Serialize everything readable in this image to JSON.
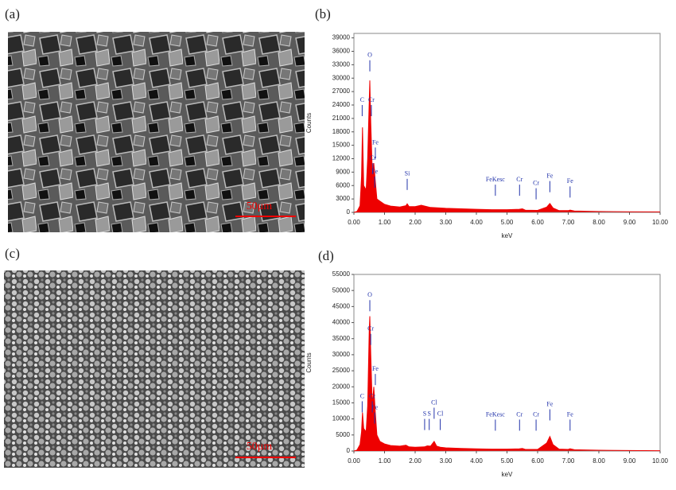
{
  "panel_labels": [
    "(a)",
    "(b)",
    "(c)",
    "(d)"
  ],
  "scale_bars": [
    "50μm",
    "50μm"
  ],
  "chart_data": [
    {
      "type": "area",
      "color": "#ee0000",
      "xlabel": "keV",
      "ylabel": "Counts",
      "x": [
        0,
        0.1,
        0.2,
        0.25,
        0.28,
        0.32,
        0.4,
        0.45,
        0.5,
        0.52,
        0.55,
        0.6,
        0.65,
        0.7,
        0.75,
        0.85,
        1.0,
        1.2,
        1.5,
        1.7,
        1.74,
        1.8,
        2.0,
        2.2,
        2.5,
        3.0,
        3.5,
        4.0,
        4.5,
        5.0,
        5.4,
        5.5,
        5.6,
        6.0,
        6.3,
        6.4,
        6.5,
        6.7,
        7.0,
        7.06,
        7.2,
        8.0,
        9.0,
        10.0
      ],
      "values": [
        0,
        200,
        1500,
        8000,
        19000,
        6000,
        5000,
        12000,
        25000,
        29500,
        20000,
        9000,
        11000,
        7000,
        3000,
        2500,
        1800,
        1400,
        1200,
        1500,
        1900,
        1300,
        1300,
        1600,
        1100,
        900,
        800,
        700,
        600,
        600,
        700,
        800,
        500,
        450,
        1200,
        2000,
        1000,
        400,
        400,
        500,
        300,
        200,
        150,
        100
      ],
      "annotations": [
        {
          "text": "C",
          "x": 0.27,
          "y": 24000
        },
        {
          "text": "O",
          "x": 0.52,
          "y": 34000
        },
        {
          "text": "Cr",
          "x": 0.57,
          "y": 24000
        },
        {
          "text": "Fe",
          "x": 0.7,
          "y": 14500
        },
        {
          "text": "Cr",
          "x": 0.62,
          "y": 11000
        },
        {
          "text": "Fe",
          "x": 0.68,
          "y": 8000
        },
        {
          "text": "Si",
          "x": 1.74,
          "y": 7500
        },
        {
          "text": "FeKesc",
          "x": 4.62,
          "y": 6200
        },
        {
          "text": "Cr",
          "x": 5.41,
          "y": 6200
        },
        {
          "text": "Cr",
          "x": 5.95,
          "y": 5400
        },
        {
          "text": "Fe",
          "x": 6.4,
          "y": 7000
        },
        {
          "text": "Fe",
          "x": 7.06,
          "y": 5800
        }
      ],
      "xlim": [
        0,
        10
      ],
      "xticks": [
        {
          "value": 0,
          "label": "0.00"
        },
        {
          "value": 1,
          "label": "1.00"
        },
        {
          "value": 2,
          "label": "2.00"
        },
        {
          "value": 3,
          "label": "3.00"
        },
        {
          "value": 4,
          "label": "4.00"
        },
        {
          "value": 5,
          "label": "5.00"
        },
        {
          "value": 6,
          "label": "6.00"
        },
        {
          "value": 7,
          "label": "7.00"
        },
        {
          "value": 8,
          "label": "8.00"
        },
        {
          "value": 9,
          "label": "9.00"
        },
        {
          "value": 10,
          "label": "10.00"
        }
      ],
      "ylim": [
        0,
        40000
      ],
      "yticks": [
        0,
        3000,
        6000,
        9000,
        12000,
        15000,
        18000,
        21000,
        24000,
        27000,
        30000,
        33000,
        36000,
        39000
      ]
    },
    {
      "type": "area",
      "color": "#ee0000",
      "xlabel": "keV",
      "ylabel": "Counts",
      "x": [
        0,
        0.1,
        0.2,
        0.25,
        0.28,
        0.32,
        0.4,
        0.45,
        0.5,
        0.52,
        0.55,
        0.6,
        0.65,
        0.7,
        0.75,
        0.85,
        1.0,
        1.2,
        1.5,
        1.7,
        1.8,
        2.0,
        2.3,
        2.4,
        2.5,
        2.62,
        2.7,
        2.82,
        3.0,
        3.5,
        4.0,
        4.5,
        5.0,
        5.4,
        5.5,
        5.6,
        6.0,
        6.3,
        6.4,
        6.5,
        6.7,
        7.0,
        7.06,
        7.2,
        8.0,
        9.0,
        10.0
      ],
      "values": [
        0,
        300,
        2000,
        6000,
        12000,
        7000,
        6000,
        14000,
        38000,
        42000,
        30000,
        14000,
        20000,
        12000,
        5000,
        3000,
        2200,
        1700,
        1500,
        1800,
        1300,
        1200,
        1300,
        1600,
        1500,
        3000,
        1500,
        1200,
        1000,
        800,
        700,
        600,
        600,
        700,
        800,
        500,
        500,
        2500,
        4500,
        2000,
        600,
        500,
        700,
        400,
        250,
        150,
        100
      ],
      "annotations": [
        {
          "text": "O",
          "x": 0.52,
          "y": 47000
        },
        {
          "text": "Cr",
          "x": 0.55,
          "y": 36500
        },
        {
          "text": "Fe",
          "x": 0.7,
          "y": 24000
        },
        {
          "text": "C",
          "x": 0.27,
          "y": 15500
        },
        {
          "text": "Cr",
          "x": 0.6,
          "y": 15500
        },
        {
          "text": "Fe",
          "x": 0.68,
          "y": 12000
        },
        {
          "text": "S",
          "x": 2.31,
          "y": 10000
        },
        {
          "text": "S",
          "x": 2.46,
          "y": 10000
        },
        {
          "text": "Cl",
          "x": 2.62,
          "y": 13500
        },
        {
          "text": "Cl",
          "x": 2.82,
          "y": 10000
        },
        {
          "text": "FeKesc",
          "x": 4.62,
          "y": 9800
        },
        {
          "text": "Cr",
          "x": 5.41,
          "y": 9800
        },
        {
          "text": "Cr",
          "x": 5.95,
          "y": 9800
        },
        {
          "text": "Fe",
          "x": 6.4,
          "y": 13000
        },
        {
          "text": "Fe",
          "x": 7.06,
          "y": 9800
        }
      ],
      "xlim": [
        0,
        10
      ],
      "xticks": [
        {
          "value": 0,
          "label": "0.00"
        },
        {
          "value": 1,
          "label": "1.00"
        },
        {
          "value": 2,
          "label": "2.00"
        },
        {
          "value": 3,
          "label": "3.00"
        },
        {
          "value": 4,
          "label": "4.00"
        },
        {
          "value": 5,
          "label": "5.00"
        },
        {
          "value": 6,
          "label": "6.00"
        },
        {
          "value": 7,
          "label": "7.00"
        },
        {
          "value": 8,
          "label": "8.00"
        },
        {
          "value": 9,
          "label": "9.00"
        },
        {
          "value": 10,
          "label": "10.00"
        }
      ],
      "ylim": [
        0,
        55000
      ],
      "yticks": [
        0,
        5000,
        10000,
        15000,
        20000,
        25000,
        30000,
        35000,
        40000,
        45000,
        50000,
        55000
      ]
    }
  ]
}
